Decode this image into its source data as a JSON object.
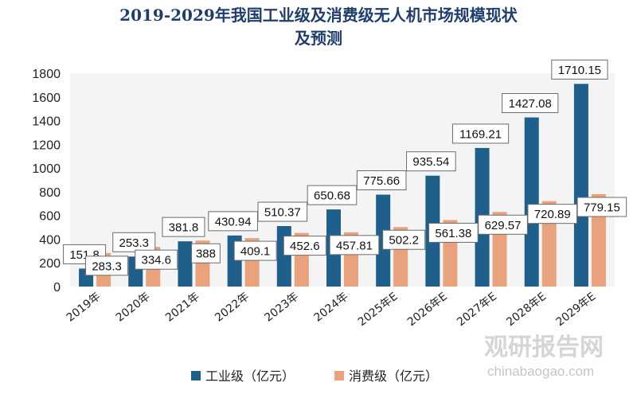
{
  "chart_data": {
    "type": "bar",
    "title_lines": [
      "2019-2029年我国工业级及消费级无人机市场规模现状",
      "及预测"
    ],
    "categories": [
      "2019年",
      "2020年",
      "2021年",
      "2022年",
      "2023年",
      "2024年",
      "2025年E",
      "2026年E",
      "2027年E",
      "2028年E",
      "2029年E"
    ],
    "series": [
      {
        "name": "工业级（亿元）",
        "color": "#1f5f8b",
        "values": [
          151.8,
          253.3,
          381.8,
          430.94,
          510.37,
          650.68,
          775.66,
          935.54,
          1169.21,
          1427.08,
          1710.15
        ],
        "labels": [
          "151.8",
          "253.3",
          "381.8",
          "430.94",
          "510.37",
          "650.68",
          "775.66",
          "935.54",
          "1169.21",
          "1427.08",
          "1710.15"
        ]
      },
      {
        "name": "消费级（亿元）",
        "color": "#e9a27c",
        "values": [
          283.3,
          334.6,
          388,
          409.1,
          452.6,
          457.81,
          502.2,
          561.38,
          629.57,
          720.89,
          779.15
        ],
        "labels": [
          "283.3",
          "334.6",
          "388",
          "409.1",
          "452.6",
          "457.81",
          "502.2",
          "561.38",
          "629.57",
          "720.89",
          "779.15"
        ]
      }
    ],
    "yticks": [
      "0",
      "200",
      "400",
      "600",
      "800",
      "1000",
      "1200",
      "1400",
      "1600",
      "1800"
    ],
    "ylim": [
      0,
      1800
    ],
    "legend_position": "bottom",
    "grid": false
  },
  "watermark": {
    "brand": "观研报告网",
    "url": "chinabaogao.com"
  }
}
